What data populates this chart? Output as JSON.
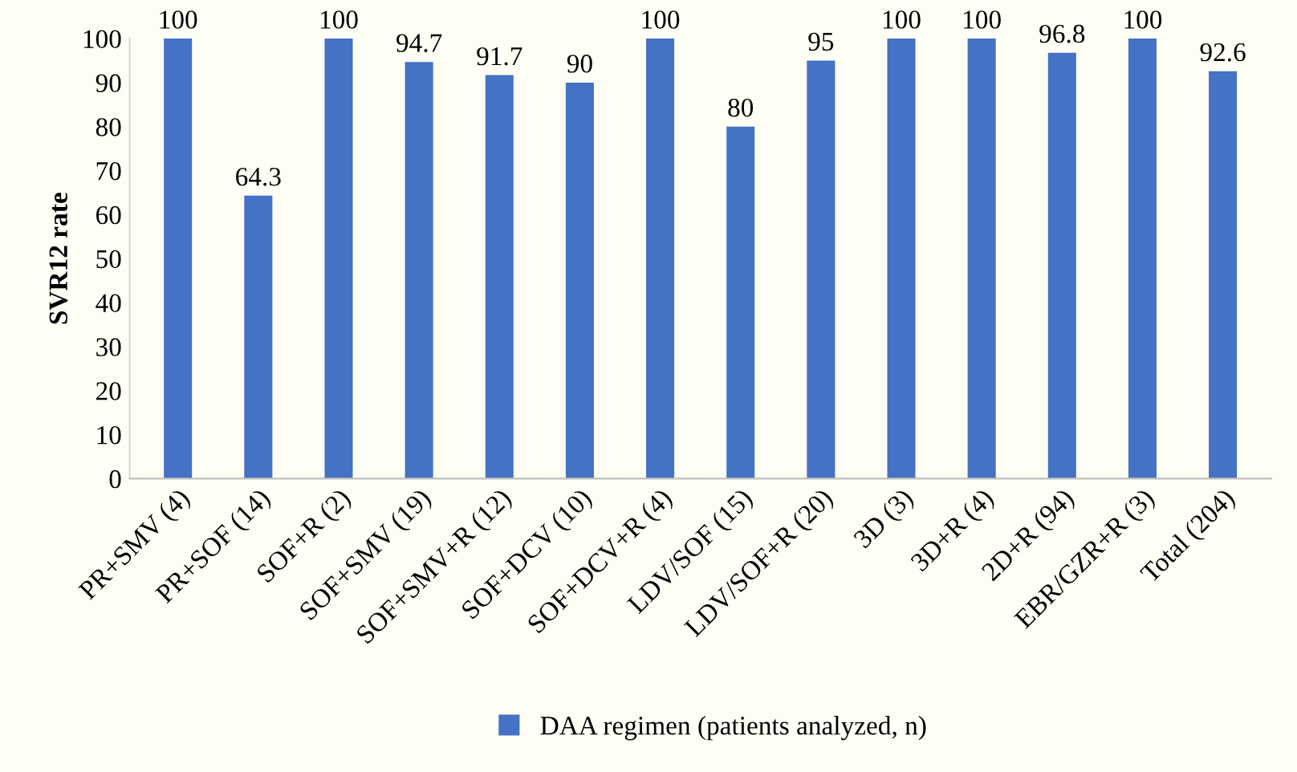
{
  "chart_data": {
    "type": "bar",
    "ylabel": "SVR12 rate",
    "categories": [
      "PR+SMV (4)",
      "PR+SOF (14)",
      "SOF+R (2)",
      "SOF+SMV (19)",
      "SOF+SMV+R (12)",
      "SOF+DCV (10)",
      "SOF+DCV+R (4)",
      "LDV/SOF (15)",
      "LDV/SOF+R (20)",
      "3D (3)",
      "3D+R (4)",
      "2D+R (94)",
      "EBR/GZR+R (3)",
      "Total (204)"
    ],
    "series": [
      {
        "name": "DAA regimen (patients analyzed, n)",
        "color": "#4472c4",
        "values": [
          100,
          64.3,
          100,
          94.7,
          91.7,
          90,
          100,
          80,
          95,
          100,
          100,
          96.8,
          100,
          92.6
        ]
      }
    ],
    "ylim": [
      0,
      100
    ],
    "yticks": [
      0,
      10,
      20,
      30,
      40,
      50,
      60,
      70,
      80,
      90,
      100
    ],
    "data_labels": true,
    "grid": false,
    "legend": "bottom"
  }
}
